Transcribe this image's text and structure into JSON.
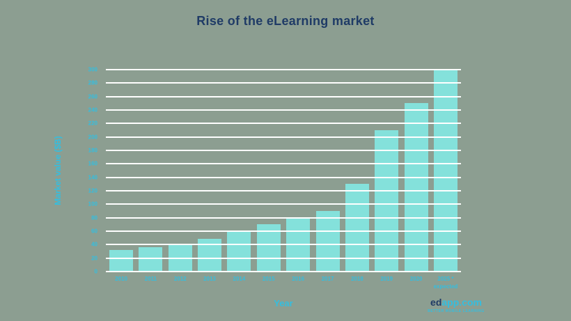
{
  "colors": {
    "background": "#8C9E91",
    "bar": "#84E1DB",
    "gridline": "#FFFFFF",
    "title": "#1F3B66",
    "axis_label": "#34BEDF",
    "tick_label": "#34BEDF",
    "logo_ed": "#1F3B66",
    "logo_app": "#34BEDF"
  },
  "chart_data": {
    "type": "bar",
    "title": "Rise of the eLearning market",
    "categories": [
      "2010",
      "2011",
      "2012",
      "2013",
      "2014",
      "2015",
      "2016",
      "2017",
      "2018",
      "2019",
      "2020",
      "2025 *\nexpected"
    ],
    "values": [
      32,
      36,
      40,
      49,
      59,
      70,
      80,
      90,
      130,
      210,
      250,
      300
    ],
    "xlabel": "Year",
    "ylabel": "Market value ($B)",
    "ylim": [
      0,
      300
    ],
    "ytick_step": 20,
    "grid": "horizontal-white-lines-over-bars",
    "legend": "none"
  },
  "logo": {
    "prefix": "ed",
    "suffix": "app.com",
    "tagline": "BETTER MOBILE LEARNING"
  }
}
